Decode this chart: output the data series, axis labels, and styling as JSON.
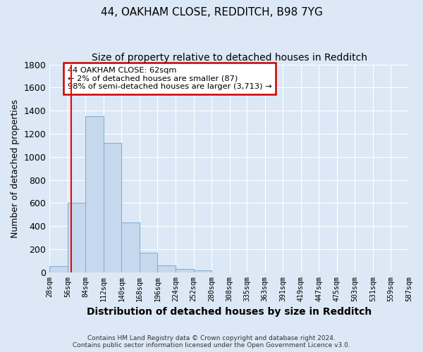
{
  "title": "44, OAKHAM CLOSE, REDDITCH, B98 7YG",
  "subtitle": "Size of property relative to detached houses in Redditch",
  "xlabel": "Distribution of detached houses by size in Redditch",
  "ylabel": "Number of detached properties",
  "bin_edges": [
    28,
    56,
    84,
    112,
    140,
    168,
    196,
    224,
    252,
    280,
    308,
    335,
    363,
    391,
    419,
    447,
    475,
    503,
    531,
    559,
    587
  ],
  "bar_heights": [
    55,
    600,
    1350,
    1120,
    430,
    170,
    60,
    30,
    20,
    0,
    0,
    0,
    0,
    0,
    0,
    0,
    0,
    0,
    0,
    0
  ],
  "bar_color": "#c5d8ee",
  "bar_edge_color": "#7aaed4",
  "red_line_x": 62,
  "ylim": [
    0,
    1800
  ],
  "yticks": [
    0,
    200,
    400,
    600,
    800,
    1000,
    1200,
    1400,
    1600,
    1800
  ],
  "xtick_labels": [
    "28sqm",
    "56sqm",
    "84sqm",
    "112sqm",
    "140sqm",
    "168sqm",
    "196sqm",
    "224sqm",
    "252sqm",
    "280sqm",
    "308sqm",
    "335sqm",
    "363sqm",
    "391sqm",
    "419sqm",
    "447sqm",
    "475sqm",
    "503sqm",
    "531sqm",
    "559sqm",
    "587sqm"
  ],
  "annotation_text": "44 OAKHAM CLOSE: 62sqm\n← 2% of detached houses are smaller (87)\n98% of semi-detached houses are larger (3,713) →",
  "annotation_box_color": "#ffffff",
  "annotation_box_edge": "#cc0000",
  "footer_line1": "Contains HM Land Registry data © Crown copyright and database right 2024.",
  "footer_line2": "Contains public sector information licensed under the Open Government Licence v3.0.",
  "background_color": "#dce8f5",
  "plot_background": "#dce8f5",
  "grid_color": "#ffffff",
  "title_fontsize": 11,
  "subtitle_fontsize": 10,
  "ylabel_fontsize": 9,
  "xlabel_fontsize": 10
}
